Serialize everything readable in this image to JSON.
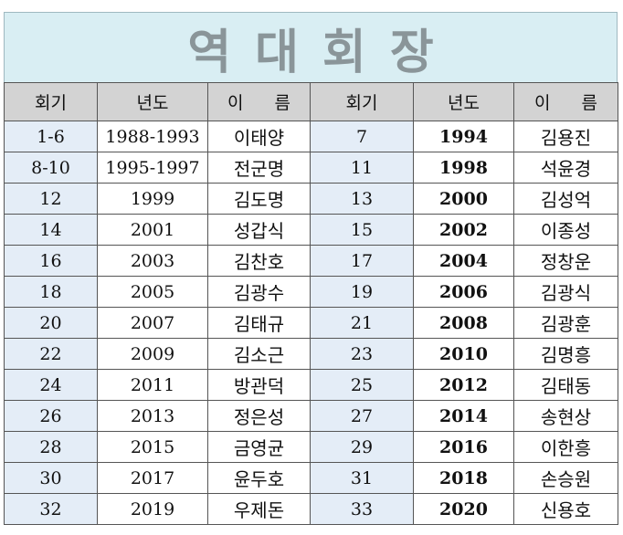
{
  "title": "역대회장",
  "headers": [
    "회기",
    "년도",
    "이  름",
    "회기",
    "년도",
    "이  름"
  ],
  "rows": [
    {
      "g1": "1-6",
      "y1": "1988-1993",
      "n1": "이태양",
      "g2": "7",
      "y2": "1994",
      "n2": "김용진"
    },
    {
      "g1": "8-10",
      "y1": "1995-1997",
      "n1": "전군명",
      "g2": "11",
      "y2": "1998",
      "n2": "석윤경"
    },
    {
      "g1": "12",
      "y1": "1999",
      "n1": "김도명",
      "g2": "13",
      "y2": "2000",
      "n2": "김성억"
    },
    {
      "g1": "14",
      "y1": "2001",
      "n1": "성갑식",
      "g2": "15",
      "y2": "2002",
      "n2": "이종성"
    },
    {
      "g1": "16",
      "y1": "2003",
      "n1": "김찬호",
      "g2": "17",
      "y2": "2004",
      "n2": "정창운"
    },
    {
      "g1": "18",
      "y1": "2005",
      "n1": "김광수",
      "g2": "19",
      "y2": "2006",
      "n2": "김광식"
    },
    {
      "g1": "20",
      "y1": "2007",
      "n1": "김태규",
      "g2": "21",
      "y2": "2008",
      "n2": "김광훈"
    },
    {
      "g1": "22",
      "y1": "2009",
      "n1": "김소근",
      "g2": "23",
      "y2": "2010",
      "n2": "김명흥"
    },
    {
      "g1": "24",
      "y1": "2011",
      "n1": "방관덕",
      "g2": "25",
      "y2": "2012",
      "n2": "김태동"
    },
    {
      "g1": "26",
      "y1": "2013",
      "n1": "정은성",
      "g2": "27",
      "y2": "2014",
      "n2": "송현상"
    },
    {
      "g1": "28",
      "y1": "2015",
      "n1": "금영균",
      "g2": "29",
      "y2": "2016",
      "n2": "이한흥"
    },
    {
      "g1": "30",
      "y1": "2017",
      "n1": "윤두호",
      "g2": "31",
      "y2": "2018",
      "n2": "손승원"
    },
    {
      "g1": "32",
      "y1": "2019",
      "n1": "우제돈",
      "g2": "33",
      "y2": "2020",
      "n2": "신용호"
    }
  ]
}
